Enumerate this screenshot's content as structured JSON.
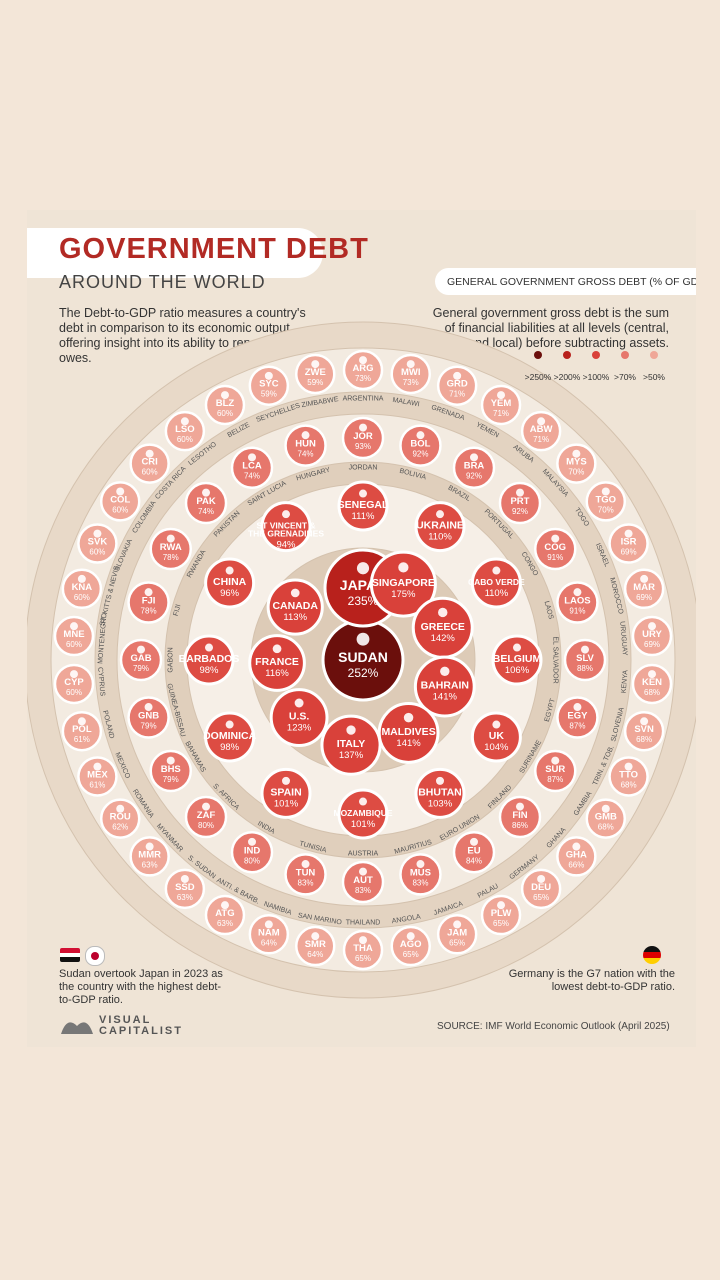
{
  "title": "GOVERNMENT DEBT",
  "subtitle": "AROUND THE WORLD",
  "description_left": "The Debt-to-GDP ratio measures a country's debt in comparison to its economic output, offering insight into its ability to repay what it owes.",
  "description_right": "General government gross debt is the sum of financial liabilities at all levels (central, state, and local) before subtracting assets.",
  "legend_title": "GENERAL GOVERNMENT GROSS DEBT (% OF GDP)",
  "legend": [
    {
      "label": ">250%",
      "color": "#6b0f0c"
    },
    {
      "label": ">200%",
      "color": "#b8211c"
    },
    {
      "label": ">100%",
      "color": "#d9413a"
    },
    {
      "label": ">70%",
      "color": "#e6776c"
    },
    {
      "label": ">50%",
      "color": "#efa798"
    }
  ],
  "sudan_note": "Sudan overtook Japan in 2023 as the country with the highest debt-to-GDP ratio.",
  "germany_note": "Germany is the G7 nation with the lowest debt-to-GDP ratio.",
  "logo": "VISUAL CAPITALIST",
  "source": "SOURCE: IMF World Economic Outlook (April 2025)",
  "chart_data": {
    "type": "bubble-rings",
    "unit": "% of GDP",
    "rings": [
      {
        "tier": ">250%",
        "items": [
          {
            "code": "SUDAN",
            "value": 252
          }
        ]
      },
      {
        "tier": ">200%",
        "items": [
          {
            "code": "JAPAN",
            "value": 235
          }
        ]
      },
      {
        "tier": ">100%",
        "items": [
          {
            "code": "SINGAPORE",
            "value": 175
          },
          {
            "code": "GREECE",
            "value": 142
          },
          {
            "code": "BAHRAIN",
            "value": 141
          },
          {
            "code": "MALDIVES",
            "value": 141
          },
          {
            "code": "ITALY",
            "value": 137
          },
          {
            "code": "U.S.",
            "value": 123
          },
          {
            "code": "FRANCE",
            "value": 116
          },
          {
            "code": "CANADA",
            "value": 113
          },
          {
            "code": "SENEGAL",
            "value": 111
          },
          {
            "code": "UKRAINE",
            "value": 110
          },
          {
            "code": "CABO VERDE",
            "value": 110
          },
          {
            "code": "BELGIUM",
            "value": 106
          },
          {
            "code": "UK",
            "value": 104
          },
          {
            "code": "BHUTAN",
            "value": 103
          },
          {
            "code": "MOZAMBIQUE",
            "value": 101
          },
          {
            "code": "SPAIN",
            "value": 101
          },
          {
            "code": "DOMINICA",
            "value": 98
          },
          {
            "code": "BARBADOS",
            "value": 98
          },
          {
            "code": "CHINA",
            "value": 96
          },
          {
            "code": "ST VINCENT & THE GRENADINES",
            "value": 94
          }
        ]
      },
      {
        "tier": ">70%",
        "items": [
          {
            "code": "JOR",
            "name": "JORDAN",
            "value": 93
          },
          {
            "code": "BOL",
            "name": "BOLIVIA",
            "value": 92
          },
          {
            "code": "BRA",
            "name": "BRAZIL",
            "value": 92
          },
          {
            "code": "PRT",
            "name": "PORTUGAL",
            "value": 92
          },
          {
            "code": "COG",
            "name": "CONGO",
            "value": 91
          },
          {
            "code": "LAOS",
            "name": "LAOS",
            "value": 91
          },
          {
            "code": "SLV",
            "name": "EL SALVADOR",
            "value": 88
          },
          {
            "code": "EGY",
            "name": "EGYPT",
            "value": 87
          },
          {
            "code": "SUR",
            "name": "SURINAME",
            "value": 87
          },
          {
            "code": "FIN",
            "name": "FINLAND",
            "value": 86
          },
          {
            "code": "EU",
            "name": "EURO UNION",
            "value": 84
          },
          {
            "code": "MUS",
            "name": "MAURITIUS",
            "value": 83
          },
          {
            "code": "AUT",
            "name": "AUSTRIA",
            "value": 83
          },
          {
            "code": "TUN",
            "name": "TUNISIA",
            "value": 83
          },
          {
            "code": "IND",
            "name": "INDIA",
            "value": 80
          },
          {
            "code": "ZAF",
            "name": "S. AFRICA",
            "value": 80
          },
          {
            "code": "BHS",
            "name": "BAHAMAS",
            "value": 79
          },
          {
            "code": "GNB",
            "name": "GUINEA-BISSAU",
            "value": 79
          },
          {
            "code": "GAB",
            "name": "GABON",
            "value": 79
          },
          {
            "code": "FJI",
            "name": "FIJI",
            "value": 78
          },
          {
            "code": "RWA",
            "name": "RWANDA",
            "value": 78
          },
          {
            "code": "PAK",
            "name": "PAKISTAN",
            "value": 74
          },
          {
            "code": "LCA",
            "name": "SAINT LUCIA",
            "value": 74
          },
          {
            "code": "HUN",
            "name": "HUNGARY",
            "value": 74
          }
        ]
      },
      {
        "tier": ">50%",
        "items": [
          {
            "code": "ARG",
            "name": "ARGENTINA",
            "value": 73
          },
          {
            "code": "MWI",
            "name": "MALAWI",
            "value": 73
          },
          {
            "code": "GRD",
            "name": "GRENADA",
            "value": 71
          },
          {
            "code": "YEM",
            "name": "YEMEN",
            "value": 71
          },
          {
            "code": "ABW",
            "name": "ARUBA",
            "value": 71
          },
          {
            "code": "MYS",
            "name": "MALAYSIA",
            "value": 70
          },
          {
            "code": "TGO",
            "name": "TOGO",
            "value": 70
          },
          {
            "code": "ISR",
            "name": "ISRAEL",
            "value": 69
          },
          {
            "code": "MAR",
            "name": "MOROCCO",
            "value": 69
          },
          {
            "code": "URY",
            "name": "URUGUAY",
            "value": 69
          },
          {
            "code": "KEN",
            "name": "KENYA",
            "value": 68
          },
          {
            "code": "SVN",
            "name": "SLOVENIA",
            "value": 68
          },
          {
            "code": "TTO",
            "name": "TRIN. & TOB.",
            "value": 68
          },
          {
            "code": "GMB",
            "name": "GAMBIA",
            "value": 68
          },
          {
            "code": "GHA",
            "name": "GHANA",
            "value": 66
          },
          {
            "code": "DEU",
            "name": "GERMANY",
            "value": 65
          },
          {
            "code": "PLW",
            "name": "PALAU",
            "value": 65
          },
          {
            "code": "JAM",
            "name": "JAMAICA",
            "value": 65
          },
          {
            "code": "AGO",
            "name": "ANGOLA",
            "value": 65
          },
          {
            "code": "THA",
            "name": "THAILAND",
            "value": 65
          },
          {
            "code": "SMR",
            "name": "SAN MARINO",
            "value": 64
          },
          {
            "code": "NAM",
            "name": "NAMIBIA",
            "value": 64
          },
          {
            "code": "ATG",
            "name": "ANTI. & BARB.",
            "value": 63
          },
          {
            "code": "SSD",
            "name": "S. SUDAN",
            "value": 63
          },
          {
            "code": "MMR",
            "name": "MYANMAR",
            "value": 63
          },
          {
            "code": "ROU",
            "name": "ROMANIA",
            "value": 62
          },
          {
            "code": "MEX",
            "name": "MEXICO",
            "value": 61
          },
          {
            "code": "POL",
            "name": "POLAND",
            "value": 61
          },
          {
            "code": "CYP",
            "name": "CYPRUS",
            "value": 60
          },
          {
            "code": "MNE",
            "name": "MONTENEGRO",
            "value": 60
          },
          {
            "code": "KNA",
            "name": "ST. KITTS & NEVIS",
            "value": 60
          },
          {
            "code": "SVK",
            "name": "SLOVAKIA",
            "value": 60
          },
          {
            "code": "COL",
            "name": "COLOMBIA",
            "value": 60
          },
          {
            "code": "CRI",
            "name": "COSTA RICA",
            "value": 60
          },
          {
            "code": "LSO",
            "name": "LESOTHO",
            "value": 60
          },
          {
            "code": "BLZ",
            "name": "BELIZE",
            "value": 60
          },
          {
            "code": "SYC",
            "name": "SEYCHELLES",
            "value": 59
          },
          {
            "code": "ZWE",
            "name": "ZIMBABWE",
            "value": 59
          }
        ]
      }
    ]
  }
}
